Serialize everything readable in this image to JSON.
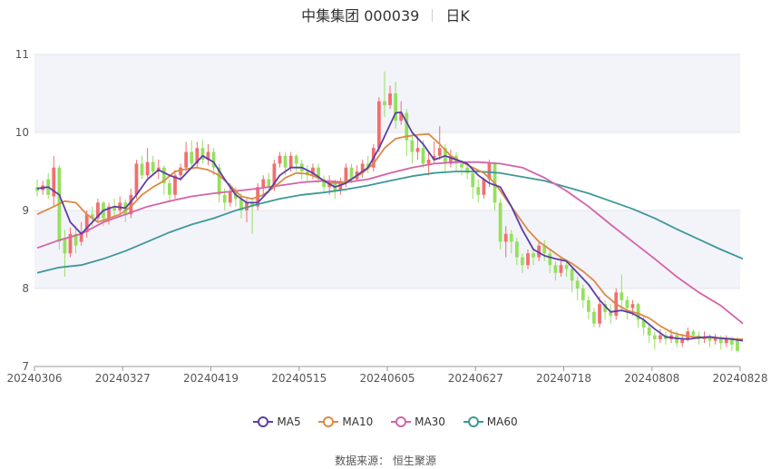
{
  "header": {
    "name": "中集集团 000039",
    "period": "日K"
  },
  "source": "数据来源： 恒生聚源",
  "colors": {
    "up": "#f06f6f",
    "down": "#95e05e",
    "band": "#f3f3fa",
    "MA5": "#5b3ea8",
    "MA10": "#dc8a45",
    "MA30": "#d562a8",
    "MA60": "#3f9898"
  },
  "chart_data": {
    "type": "candlestick",
    "title": "中集集团 000039",
    "ylim": [
      7,
      11
    ],
    "yticks": [
      7,
      8,
      9,
      10,
      11
    ],
    "xticks": [
      "20240306",
      "20240327",
      "20240419",
      "20240515",
      "20240605",
      "20240627",
      "20240718",
      "20240808",
      "20240828"
    ],
    "legend": [
      "MA5",
      "MA10",
      "MA30",
      "MA60"
    ],
    "ohlc": [
      [
        9.3,
        9.25,
        9.4,
        9.18
      ],
      [
        9.26,
        9.32,
        9.38,
        9.2
      ],
      [
        9.4,
        9.2,
        9.48,
        9.15
      ],
      [
        9.18,
        9.55,
        9.7,
        9.05
      ],
      [
        9.55,
        8.6,
        9.58,
        8.5
      ],
      [
        8.65,
        8.45,
        8.75,
        8.15
      ],
      [
        8.45,
        8.7,
        8.78,
        8.4
      ],
      [
        8.7,
        8.55,
        8.8,
        8.45
      ],
      [
        8.6,
        8.72,
        8.85,
        8.55
      ],
      [
        8.72,
        8.95,
        9.0,
        8.65
      ],
      [
        8.95,
        8.9,
        9.05,
        8.8
      ],
      [
        8.9,
        9.1,
        9.15,
        8.85
      ],
      [
        9.1,
        8.9,
        9.12,
        8.8
      ],
      [
        8.9,
        9.05,
        9.1,
        8.82
      ],
      [
        9.05,
        9.0,
        9.15,
        8.92
      ],
      [
        9.0,
        9.1,
        9.18,
        8.95
      ],
      [
        9.1,
        8.95,
        9.14,
        8.85
      ],
      [
        8.95,
        9.2,
        9.28,
        8.9
      ],
      [
        9.2,
        9.6,
        9.65,
        9.15
      ],
      [
        9.6,
        9.45,
        9.7,
        9.4
      ],
      [
        9.45,
        9.62,
        9.8,
        9.42
      ],
      [
        9.62,
        9.5,
        9.7,
        9.45
      ],
      [
        9.5,
        9.55,
        9.65,
        9.4
      ],
      [
        9.55,
        9.35,
        9.58,
        9.2
      ],
      [
        9.35,
        9.2,
        9.4,
        9.1
      ],
      [
        9.2,
        9.45,
        9.52,
        9.15
      ],
      [
        9.45,
        9.55,
        9.6,
        9.38
      ],
      [
        9.55,
        9.75,
        9.88,
        9.5
      ],
      [
        9.75,
        9.6,
        9.9,
        9.55
      ],
      [
        9.6,
        9.8,
        9.88,
        9.55
      ],
      [
        9.8,
        9.65,
        9.9,
        9.6
      ],
      [
        9.65,
        9.75,
        9.85,
        9.58
      ],
      [
        9.75,
        9.55,
        9.8,
        9.45
      ],
      [
        9.55,
        9.2,
        9.6,
        9.1
      ],
      [
        9.2,
        9.1,
        9.28,
        9.0
      ],
      [
        9.1,
        9.25,
        9.35,
        9.05
      ],
      [
        9.25,
        9.15,
        9.3,
        9.05
      ],
      [
        9.15,
        9.0,
        9.22,
        8.9
      ],
      [
        9.0,
        9.1,
        9.15,
        8.85
      ],
      [
        9.1,
        9.05,
        9.15,
        8.7
      ],
      [
        9.05,
        9.3,
        9.35,
        9.0
      ],
      [
        9.3,
        9.4,
        9.45,
        9.2
      ],
      [
        9.4,
        9.3,
        9.48,
        9.22
      ],
      [
        9.3,
        9.6,
        9.65,
        9.25
      ],
      [
        9.6,
        9.7,
        9.75,
        9.55
      ],
      [
        9.7,
        9.55,
        9.75,
        9.45
      ],
      [
        9.55,
        9.7,
        9.75,
        9.5
      ],
      [
        9.7,
        9.6,
        9.72,
        9.5
      ],
      [
        9.6,
        9.5,
        9.65,
        9.4
      ],
      [
        9.5,
        9.45,
        9.58,
        9.38
      ],
      [
        9.45,
        9.55,
        9.6,
        9.4
      ],
      [
        9.55,
        9.4,
        9.6,
        9.35
      ],
      [
        9.4,
        9.3,
        9.45,
        9.25
      ],
      [
        9.3,
        9.35,
        9.45,
        9.2
      ],
      [
        9.35,
        9.25,
        9.4,
        9.15
      ],
      [
        9.25,
        9.35,
        9.42,
        9.2
      ],
      [
        9.35,
        9.55,
        9.6,
        9.3
      ],
      [
        9.55,
        9.4,
        9.6,
        9.35
      ],
      [
        9.4,
        9.5,
        9.58,
        9.38
      ],
      [
        9.5,
        9.6,
        9.65,
        9.42
      ],
      [
        9.6,
        9.55,
        9.7,
        9.48
      ],
      [
        9.55,
        9.8,
        9.85,
        9.5
      ],
      [
        9.8,
        10.4,
        10.45,
        9.75
      ],
      [
        10.4,
        10.35,
        10.78,
        10.2
      ],
      [
        10.35,
        10.5,
        10.6,
        10.3
      ],
      [
        10.5,
        10.15,
        10.65,
        10.05
      ],
      [
        10.15,
        10.25,
        10.4,
        10.1
      ],
      [
        10.25,
        9.9,
        10.3,
        9.7
      ],
      [
        9.9,
        9.75,
        10.0,
        9.6
      ],
      [
        9.75,
        9.8,
        9.95,
        9.65
      ],
      [
        9.8,
        9.6,
        9.9,
        9.55
      ],
      [
        9.6,
        9.65,
        9.75,
        9.45
      ],
      [
        9.65,
        9.7,
        9.88,
        9.6
      ],
      [
        9.7,
        9.8,
        10.08,
        9.65
      ],
      [
        9.8,
        9.6,
        9.85,
        9.5
      ],
      [
        9.6,
        9.7,
        9.78,
        9.55
      ],
      [
        9.7,
        9.6,
        9.75,
        9.5
      ],
      [
        9.6,
        9.55,
        9.65,
        9.45
      ],
      [
        9.55,
        9.48,
        9.6,
        9.4
      ],
      [
        9.48,
        9.3,
        9.52,
        9.15
      ],
      [
        9.3,
        9.2,
        9.4,
        9.1
      ],
      [
        9.2,
        9.4,
        9.42,
        9.15
      ],
      [
        9.4,
        9.6,
        9.65,
        9.3
      ],
      [
        9.6,
        9.1,
        9.62,
        9.0
      ],
      [
        9.1,
        8.6,
        9.15,
        8.5
      ],
      [
        8.6,
        8.7,
        8.8,
        8.4
      ],
      [
        8.7,
        8.6,
        8.75,
        8.45
      ],
      [
        8.6,
        8.4,
        8.65,
        8.3
      ],
      [
        8.4,
        8.3,
        8.45,
        8.2
      ],
      [
        8.3,
        8.45,
        8.5,
        8.25
      ],
      [
        8.45,
        8.4,
        8.52,
        8.3
      ],
      [
        8.4,
        8.55,
        8.6,
        8.35
      ],
      [
        8.55,
        8.45,
        8.62,
        8.35
      ],
      [
        8.45,
        8.3,
        8.5,
        8.2
      ],
      [
        8.3,
        8.2,
        8.35,
        8.1
      ],
      [
        8.2,
        8.3,
        8.4,
        8.15
      ],
      [
        8.3,
        8.25,
        8.35,
        8.15
      ],
      [
        8.25,
        8.1,
        8.28,
        7.95
      ],
      [
        8.1,
        8.0,
        8.15,
        7.85
      ],
      [
        8.0,
        7.85,
        8.05,
        7.75
      ],
      [
        7.85,
        7.7,
        7.9,
        7.6
      ],
      [
        7.7,
        7.55,
        7.75,
        7.5
      ],
      [
        7.55,
        7.8,
        7.9,
        7.5
      ],
      [
        7.8,
        7.7,
        7.85,
        7.6
      ],
      [
        7.7,
        7.65,
        7.8,
        7.55
      ],
      [
        7.65,
        7.95,
        8.0,
        7.6
      ],
      [
        7.95,
        7.85,
        8.18,
        7.7
      ],
      [
        7.85,
        7.75,
        7.9,
        7.6
      ],
      [
        7.75,
        7.8,
        7.85,
        7.65
      ],
      [
        7.8,
        7.6,
        7.82,
        7.5
      ],
      [
        7.6,
        7.5,
        7.65,
        7.4
      ],
      [
        7.5,
        7.4,
        7.55,
        7.3
      ],
      [
        7.4,
        7.35,
        7.45,
        7.22
      ],
      [
        7.35,
        7.4,
        7.48,
        7.3
      ],
      [
        7.4,
        7.35,
        7.45,
        7.28
      ],
      [
        7.35,
        7.4,
        7.48,
        7.3
      ],
      [
        7.4,
        7.3,
        7.45,
        7.25
      ],
      [
        7.3,
        7.35,
        7.42,
        7.25
      ],
      [
        7.35,
        7.45,
        7.5,
        7.32
      ],
      [
        7.45,
        7.4,
        7.48,
        7.35
      ],
      [
        7.4,
        7.35,
        7.45,
        7.28
      ],
      [
        7.35,
        7.38,
        7.45,
        7.3
      ],
      [
        7.38,
        7.33,
        7.42,
        7.25
      ],
      [
        7.33,
        7.36,
        7.42,
        7.28
      ],
      [
        7.36,
        7.3,
        7.4,
        7.22
      ],
      [
        7.3,
        7.35,
        7.4,
        7.25
      ],
      [
        7.35,
        7.28,
        7.38,
        7.2
      ],
      [
        7.35,
        7.2,
        7.38,
        7.18
      ]
    ],
    "ma": {
      "MA5": [
        [
          0,
          9.28
        ],
        [
          2,
          9.3
        ],
        [
          4,
          9.2
        ],
        [
          6,
          8.85
        ],
        [
          8,
          8.7
        ],
        [
          10,
          8.85
        ],
        [
          12,
          9.0
        ],
        [
          14,
          9.05
        ],
        [
          16,
          9.03
        ],
        [
          18,
          9.2
        ],
        [
          20,
          9.4
        ],
        [
          22,
          9.52
        ],
        [
          24,
          9.45
        ],
        [
          26,
          9.4
        ],
        [
          28,
          9.55
        ],
        [
          30,
          9.7
        ],
        [
          32,
          9.62
        ],
        [
          34,
          9.4
        ],
        [
          36,
          9.2
        ],
        [
          38,
          9.1
        ],
        [
          40,
          9.1
        ],
        [
          42,
          9.25
        ],
        [
          44,
          9.45
        ],
        [
          46,
          9.55
        ],
        [
          48,
          9.55
        ],
        [
          50,
          9.48
        ],
        [
          52,
          9.38
        ],
        [
          54,
          9.3
        ],
        [
          56,
          9.35
        ],
        [
          58,
          9.45
        ],
        [
          60,
          9.55
        ],
        [
          62,
          9.8
        ],
        [
          64,
          10.1
        ],
        [
          65,
          10.25
        ],
        [
          66,
          10.26
        ],
        [
          68,
          10.0
        ],
        [
          70,
          9.85
        ],
        [
          72,
          9.65
        ],
        [
          74,
          9.7
        ],
        [
          76,
          9.65
        ],
        [
          78,
          9.6
        ],
        [
          80,
          9.45
        ],
        [
          82,
          9.35
        ],
        [
          84,
          9.3
        ],
        [
          86,
          9.05
        ],
        [
          88,
          8.75
        ],
        [
          90,
          8.5
        ],
        [
          92,
          8.42
        ],
        [
          94,
          8.38
        ],
        [
          96,
          8.35
        ],
        [
          98,
          8.2
        ],
        [
          100,
          8.05
        ],
        [
          102,
          7.85
        ],
        [
          104,
          7.7
        ],
        [
          106,
          7.72
        ],
        [
          108,
          7.68
        ],
        [
          110,
          7.6
        ],
        [
          112,
          7.48
        ],
        [
          114,
          7.38
        ],
        [
          116,
          7.36
        ],
        [
          118,
          7.35
        ],
        [
          120,
          7.37
        ],
        [
          122,
          7.38
        ],
        [
          124,
          7.36
        ],
        [
          126,
          7.35
        ],
        [
          128,
          7.33
        ]
      ],
      "MA10": [
        [
          0,
          8.95
        ],
        [
          3,
          9.05
        ],
        [
          5,
          9.12
        ],
        [
          7,
          9.1
        ],
        [
          9,
          8.95
        ],
        [
          11,
          8.85
        ],
        [
          13,
          8.9
        ],
        [
          15,
          8.95
        ],
        [
          17,
          9.05
        ],
        [
          19,
          9.2
        ],
        [
          21,
          9.3
        ],
        [
          23,
          9.38
        ],
        [
          25,
          9.5
        ],
        [
          27,
          9.53
        ],
        [
          29,
          9.55
        ],
        [
          31,
          9.52
        ],
        [
          33,
          9.45
        ],
        [
          35,
          9.32
        ],
        [
          37,
          9.18
        ],
        [
          39,
          9.15
        ],
        [
          41,
          9.2
        ],
        [
          43,
          9.3
        ],
        [
          45,
          9.42
        ],
        [
          47,
          9.48
        ],
        [
          49,
          9.47
        ],
        [
          51,
          9.42
        ],
        [
          53,
          9.35
        ],
        [
          55,
          9.35
        ],
        [
          57,
          9.4
        ],
        [
          59,
          9.48
        ],
        [
          61,
          9.6
        ],
        [
          63,
          9.8
        ],
        [
          65,
          9.92
        ],
        [
          67,
          9.95
        ],
        [
          69,
          9.97
        ],
        [
          71,
          9.98
        ],
        [
          73,
          9.85
        ],
        [
          75,
          9.7
        ],
        [
          77,
          9.62
        ],
        [
          79,
          9.55
        ],
        [
          81,
          9.48
        ],
        [
          83,
          9.35
        ],
        [
          85,
          9.15
        ],
        [
          87,
          8.95
        ],
        [
          89,
          8.75
        ],
        [
          91,
          8.6
        ],
        [
          93,
          8.5
        ],
        [
          95,
          8.4
        ],
        [
          97,
          8.32
        ],
        [
          99,
          8.22
        ],
        [
          101,
          8.1
        ],
        [
          103,
          7.92
        ],
        [
          105,
          7.8
        ],
        [
          107,
          7.72
        ],
        [
          109,
          7.68
        ],
        [
          111,
          7.62
        ],
        [
          113,
          7.52
        ],
        [
          115,
          7.44
        ],
        [
          117,
          7.4
        ],
        [
          119,
          7.38
        ],
        [
          121,
          7.37
        ],
        [
          123,
          7.37
        ],
        [
          125,
          7.36
        ],
        [
          127,
          7.35
        ],
        [
          128,
          7.35
        ]
      ],
      "MA30": [
        [
          0,
          8.52
        ],
        [
          4,
          8.62
        ],
        [
          8,
          8.7
        ],
        [
          12,
          8.85
        ],
        [
          16,
          8.95
        ],
        [
          20,
          9.05
        ],
        [
          24,
          9.12
        ],
        [
          28,
          9.18
        ],
        [
          32,
          9.22
        ],
        [
          36,
          9.25
        ],
        [
          40,
          9.28
        ],
        [
          44,
          9.32
        ],
        [
          48,
          9.36
        ],
        [
          52,
          9.38
        ],
        [
          56,
          9.36
        ],
        [
          60,
          9.4
        ],
        [
          64,
          9.48
        ],
        [
          68,
          9.55
        ],
        [
          72,
          9.6
        ],
        [
          76,
          9.62
        ],
        [
          80,
          9.62
        ],
        [
          84,
          9.6
        ],
        [
          88,
          9.55
        ],
        [
          92,
          9.42
        ],
        [
          96,
          9.25
        ],
        [
          100,
          9.05
        ],
        [
          104,
          8.82
        ],
        [
          108,
          8.6
        ],
        [
          112,
          8.38
        ],
        [
          116,
          8.15
        ],
        [
          120,
          7.95
        ],
        [
          124,
          7.78
        ],
        [
          128,
          7.55
        ]
      ],
      "MA60": [
        [
          0,
          8.2
        ],
        [
          4,
          8.27
        ],
        [
          8,
          8.3
        ],
        [
          12,
          8.38
        ],
        [
          16,
          8.48
        ],
        [
          20,
          8.6
        ],
        [
          24,
          8.72
        ],
        [
          28,
          8.82
        ],
        [
          32,
          8.9
        ],
        [
          36,
          9.0
        ],
        [
          40,
          9.08
        ],
        [
          44,
          9.15
        ],
        [
          48,
          9.2
        ],
        [
          52,
          9.23
        ],
        [
          56,
          9.27
        ],
        [
          60,
          9.32
        ],
        [
          64,
          9.38
        ],
        [
          68,
          9.44
        ],
        [
          72,
          9.48
        ],
        [
          76,
          9.5
        ],
        [
          80,
          9.5
        ],
        [
          84,
          9.48
        ],
        [
          88,
          9.43
        ],
        [
          92,
          9.38
        ],
        [
          96,
          9.3
        ],
        [
          100,
          9.22
        ],
        [
          104,
          9.12
        ],
        [
          108,
          9.02
        ],
        [
          112,
          8.9
        ],
        [
          116,
          8.76
        ],
        [
          120,
          8.63
        ],
        [
          124,
          8.5
        ],
        [
          128,
          8.38
        ]
      ]
    }
  }
}
